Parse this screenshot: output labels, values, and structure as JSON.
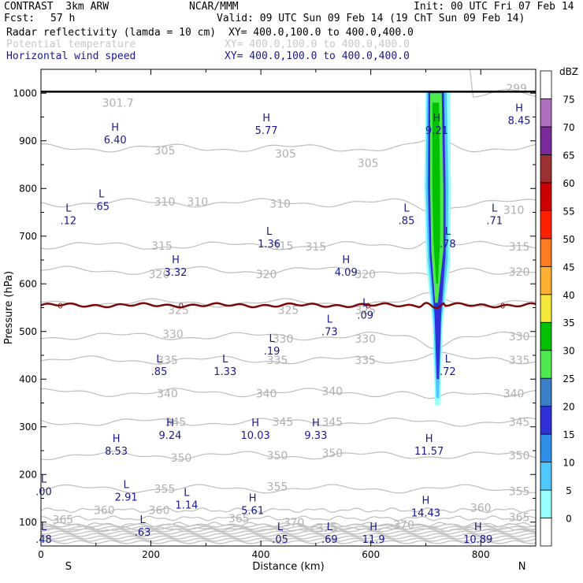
{
  "header": {
    "model": "CONTRAST  3km ARW",
    "institute": "NCAR/MMM",
    "init": "Init: 00 UTC Fri 07 Feb 14",
    "fcst_label": "Fcst:",
    "fcst_value": "57 h",
    "valid": "Valid: 09 UTC Sun 09 Feb 14 (19 ChT Sun 09 Feb 14)"
  },
  "fields": [
    {
      "name": "Radar reflectivity (lamda = 10 cm)",
      "xy": "XY= 400.0,100.0 to 400.0,400.0",
      "color": "#000000"
    },
    {
      "name": "Potential temperature",
      "xy": "XY= 400.0,100.0 to 400.0,400.0",
      "color": "#c8c8c8"
    },
    {
      "name": "Horizontal wind speed",
      "xy": "XY= 400.0,100.0 to 400.0,400.0",
      "color": "#1a1a8c"
    }
  ],
  "chart_data": {
    "type": "cross-section",
    "xlabel": "Distance (km)",
    "ylabel": "Pressure (hPa)",
    "xlim": [
      0,
      900
    ],
    "ylim": [
      1050,
      50
    ],
    "x_ticks": [
      0,
      200,
      400,
      600,
      800
    ],
    "y_ticks": [
      100,
      200,
      300,
      400,
      500,
      600,
      700,
      800,
      900,
      1000
    ],
    "x_end_labels": {
      "left": "S",
      "right": "N"
    },
    "colorbar": {
      "unit": "dBZ",
      "levels": [
        0,
        5,
        10,
        15,
        20,
        25,
        30,
        35,
        40,
        45,
        50,
        55,
        60,
        65,
        70,
        75
      ],
      "colors": [
        "#ffffff",
        "#98ffff",
        "#4fc8ff",
        "#2f8fe8",
        "#3030d8",
        "#3a7fc8",
        "#4fe84f",
        "#00c000",
        "#f5e63a",
        "#ffb030",
        "#ff7a20",
        "#ff2000",
        "#cc0000",
        "#9a3030",
        "#7a2a9a",
        "#b070c0",
        "#ffffff"
      ]
    },
    "theta_isentropes": [
      {
        "value": 299,
        "p": 1000
      },
      {
        "value": 305,
        "p": 885
      },
      {
        "value": 310,
        "p": 770
      },
      {
        "value": 315,
        "p": 680
      },
      {
        "value": 320,
        "p": 628
      },
      {
        "value": 325,
        "p": 560
      },
      {
        "value": 330,
        "p": 490
      },
      {
        "value": 335,
        "p": 440
      },
      {
        "value": 340,
        "p": 372
      },
      {
        "value": 345,
        "p": 310
      },
      {
        "value": 350,
        "p": 240
      },
      {
        "value": 355,
        "p": 170
      },
      {
        "value": 360,
        "p": 125
      },
      {
        "value": 365,
        "p": 108
      },
      {
        "value": 370,
        "p": 95
      },
      {
        "value": 375,
        "p": 85
      }
    ],
    "theta_labels": [
      {
        "text": "365",
        "x": 40,
        "p": 105
      },
      {
        "text": "360",
        "x": 115,
        "p": 125
      },
      {
        "text": "360",
        "x": 215,
        "p": 125
      },
      {
        "text": "365",
        "x": 360,
        "p": 108
      },
      {
        "text": "370",
        "x": 460,
        "p": 100
      },
      {
        "text": "375",
        "x": 520,
        "p": 88
      },
      {
        "text": "370",
        "x": 660,
        "p": 95
      },
      {
        "text": "365",
        "x": 870,
        "p": 110
      },
      {
        "text": "360",
        "x": 800,
        "p": 130
      },
      {
        "text": "355",
        "x": 225,
        "p": 170
      },
      {
        "text": "355",
        "x": 430,
        "p": 175
      },
      {
        "text": "355",
        "x": 870,
        "p": 165
      },
      {
        "text": "350",
        "x": 255,
        "p": 235
      },
      {
        "text": "350",
        "x": 430,
        "p": 240
      },
      {
        "text": "350",
        "x": 530,
        "p": 245
      },
      {
        "text": "350",
        "x": 870,
        "p": 240
      },
      {
        "text": "345",
        "x": 245,
        "p": 310
      },
      {
        "text": "345",
        "x": 440,
        "p": 310
      },
      {
        "text": "345",
        "x": 530,
        "p": 310
      },
      {
        "text": "345",
        "x": 870,
        "p": 310
      },
      {
        "text": "340",
        "x": 230,
        "p": 370
      },
      {
        "text": "340",
        "x": 410,
        "p": 370
      },
      {
        "text": "340",
        "x": 530,
        "p": 375
      },
      {
        "text": "340",
        "x": 860,
        "p": 370
      },
      {
        "text": "335",
        "x": 230,
        "p": 440
      },
      {
        "text": "335",
        "x": 430,
        "p": 440
      },
      {
        "text": "335",
        "x": 590,
        "p": 440
      },
      {
        "text": "335",
        "x": 870,
        "p": 440
      },
      {
        "text": "330",
        "x": 240,
        "p": 495
      },
      {
        "text": "330",
        "x": 440,
        "p": 485
      },
      {
        "text": "330",
        "x": 590,
        "p": 485
      },
      {
        "text": "330",
        "x": 870,
        "p": 490
      },
      {
        "text": "325",
        "x": 250,
        "p": 545
      },
      {
        "text": "325",
        "x": 450,
        "p": 545
      },
      {
        "text": "325",
        "x": 590,
        "p": 545
      },
      {
        "text": "320",
        "x": 215,
        "p": 620
      },
      {
        "text": "320",
        "x": 410,
        "p": 620
      },
      {
        "text": "320",
        "x": 590,
        "p": 620
      },
      {
        "text": "320",
        "x": 870,
        "p": 625
      },
      {
        "text": "315",
        "x": 220,
        "p": 680
      },
      {
        "text": "315",
        "x": 440,
        "p": 680
      },
      {
        "text": "315",
        "x": 500,
        "p": 678
      },
      {
        "text": "315",
        "x": 870,
        "p": 678
      },
      {
        "text": "310",
        "x": 225,
        "p": 772
      },
      {
        "text": "310",
        "x": 285,
        "p": 772
      },
      {
        "text": "310",
        "x": 435,
        "p": 768
      },
      {
        "text": "310",
        "x": 860,
        "p": 755
      },
      {
        "text": "305",
        "x": 225,
        "p": 880
      },
      {
        "text": "305",
        "x": 445,
        "p": 873
      },
      {
        "text": "305",
        "x": 595,
        "p": 853
      },
      {
        "text": "301.7",
        "x": 140,
        "p": 980
      },
      {
        "text": "299",
        "x": 865,
        "p": 1010
      }
    ],
    "freezing_level": {
      "value": 0,
      "p": 555
    },
    "wind_extrema": [
      {
        "type": "L",
        "value": ".48",
        "x": 5,
        "p": 80
      },
      {
        "type": "L",
        "value": ".63",
        "x": 185,
        "p": 95
      },
      {
        "type": "L",
        "value": ".05",
        "x": 435,
        "p": 80
      },
      {
        "type": "L",
        "value": ".69",
        "x": 525,
        "p": 80
      },
      {
        "type": "H",
        "value": "11.9",
        "x": 605,
        "p": 80
      },
      {
        "type": "H",
        "value": "10.89",
        "x": 795,
        "p": 80
      },
      {
        "type": "L",
        "value": "2.91",
        "x": 155,
        "p": 168
      },
      {
        "type": "L",
        "value": "1.14",
        "x": 265,
        "p": 152
      },
      {
        "type": "H",
        "value": "5.61",
        "x": 385,
        "p": 140
      },
      {
        "type": "H",
        "value": "14.43",
        "x": 700,
        "p": 135
      },
      {
        "type": "L",
        "value": ".00",
        "x": 5,
        "p": 180
      },
      {
        "type": "H",
        "value": "8.53",
        "x": 137,
        "p": 265
      },
      {
        "type": "H",
        "value": "9.24",
        "x": 235,
        "p": 298
      },
      {
        "type": "H",
        "value": "10.03",
        "x": 390,
        "p": 298
      },
      {
        "type": "H",
        "value": "9.33",
        "x": 500,
        "p": 298
      },
      {
        "type": "H",
        "value": "11.57",
        "x": 706,
        "p": 265
      },
      {
        "type": "L",
        "value": ".85",
        "x": 215,
        "p": 432
      },
      {
        "type": "L",
        "value": "1.33",
        "x": 335,
        "p": 432
      },
      {
        "type": "L",
        "value": ".72",
        "x": 740,
        "p": 432
      },
      {
        "type": "L",
        "value": ".19",
        "x": 420,
        "p": 475
      },
      {
        "type": "L",
        "value": ".73",
        "x": 525,
        "p": 515
      },
      {
        "type": "L",
        "value": ".09",
        "x": 590,
        "p": 550
      },
      {
        "type": "H",
        "value": "3.32",
        "x": 245,
        "p": 640
      },
      {
        "type": "H",
        "value": "4.09",
        "x": 555,
        "p": 640
      },
      {
        "type": "L",
        "value": "1.36",
        "x": 415,
        "p": 700
      },
      {
        "type": "L",
        "value": ".78",
        "x": 740,
        "p": 700
      },
      {
        "type": "L",
        "value": ".12",
        "x": 50,
        "p": 748
      },
      {
        "type": "L",
        "value": ".85",
        "x": 665,
        "p": 748
      },
      {
        "type": "L",
        "value": ".71",
        "x": 825,
        "p": 748
      },
      {
        "type": "L",
        "value": ".65",
        "x": 110,
        "p": 778
      },
      {
        "type": "H",
        "value": "6.40",
        "x": 135,
        "p": 918
      },
      {
        "type": "H",
        "value": "5.77",
        "x": 410,
        "p": 938
      },
      {
        "type": "H",
        "value": "9.21",
        "x": 720,
        "p": 938
      },
      {
        "type": "H",
        "value": "8.45",
        "x": 870,
        "p": 958
      }
    ]
  }
}
